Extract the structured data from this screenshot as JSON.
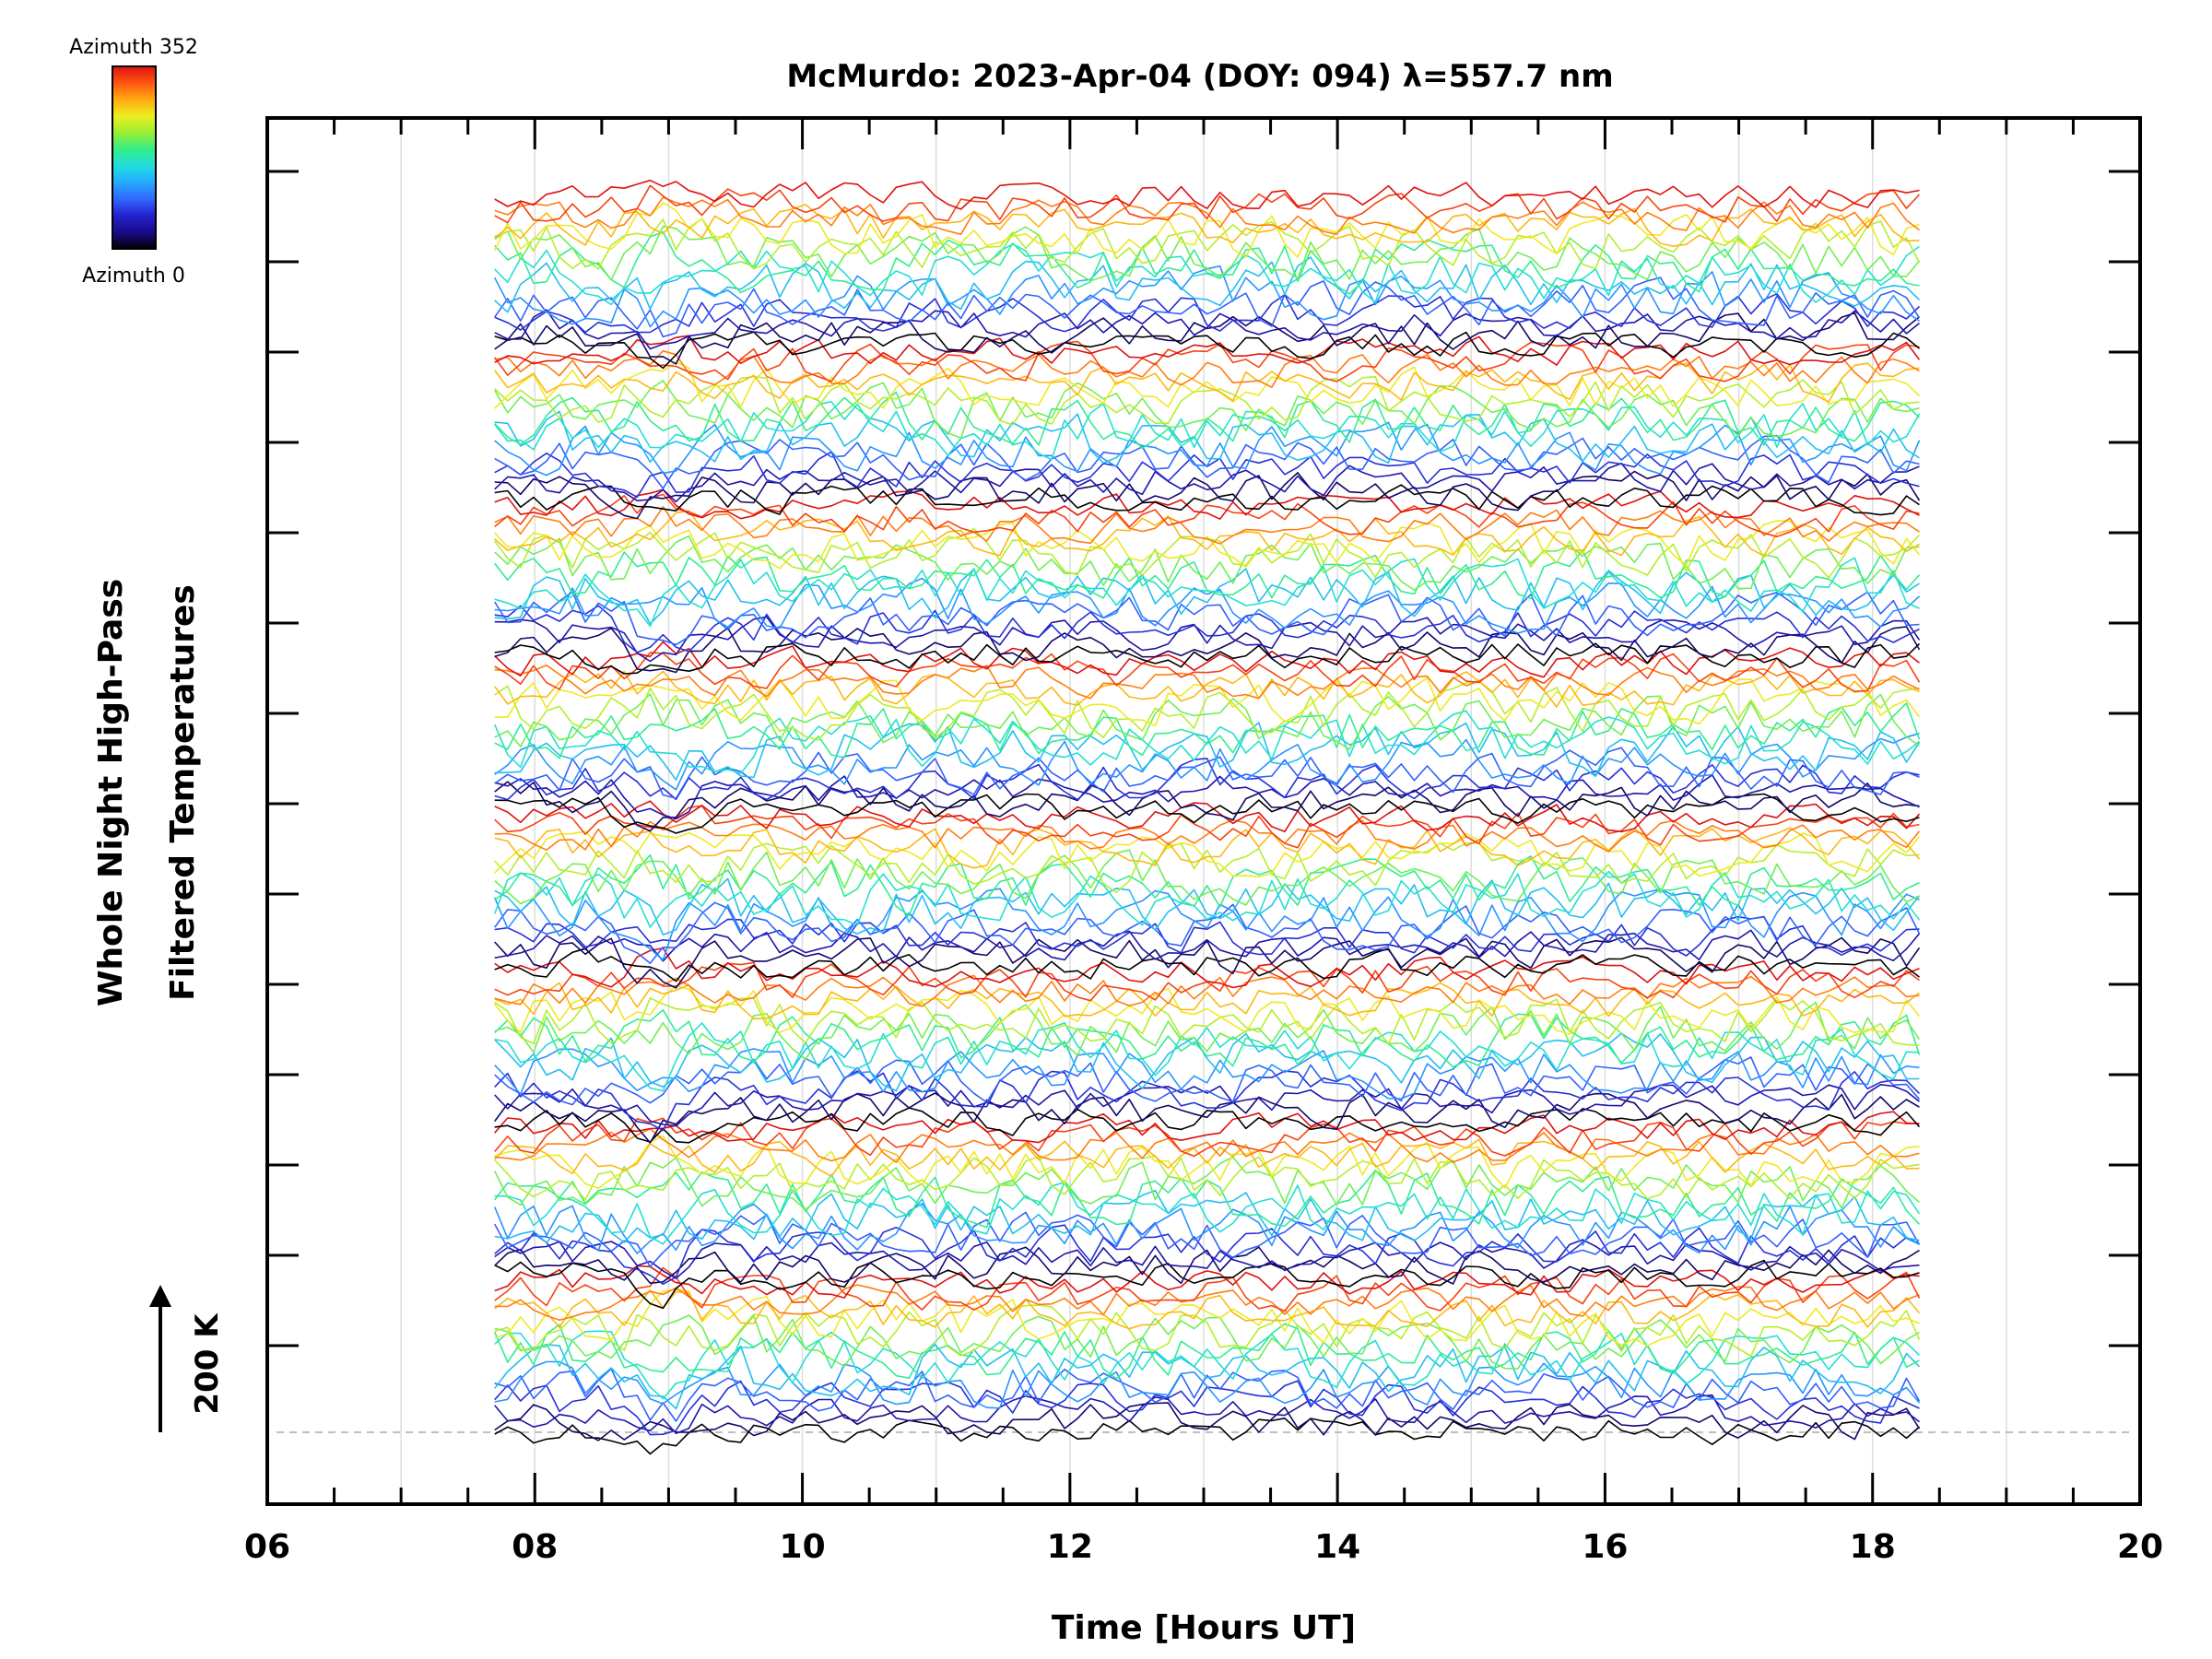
{
  "chart_data": {
    "type": "line",
    "title": "McMurdo: 2023-Apr-04 (DOY: 094) λ=557.7 nm",
    "xlabel": "Time [Hours UT]",
    "ylabel_line1": "Whole Night High-Pass",
    "ylabel_line2": "Filtered Temperatures",
    "xlim": [
      6,
      20
    ],
    "x_ticks": [
      6,
      8,
      10,
      12,
      14,
      16,
      18,
      20
    ],
    "x_tick_labels": [
      "06",
      "08",
      "10",
      "12",
      "14",
      "16",
      "18",
      "20"
    ],
    "data_time_range": [
      7.7,
      18.35
    ],
    "stack_count": 8,
    "traces_per_stack": 16,
    "scale_bar_label": "200 K",
    "scale_bar_units": 200,
    "grid": true,
    "colorbar": {
      "label_top": "Azimuth 352",
      "label_bottom": "Azimuth 0",
      "min": 0,
      "max": 352,
      "colors": [
        "#000000",
        "#1a0a8a",
        "#2222cc",
        "#3366ff",
        "#22aaff",
        "#22dddd",
        "#33ee88",
        "#99ee33",
        "#eeee22",
        "#ffaa11",
        "#ff5511",
        "#dd1111"
      ]
    }
  }
}
